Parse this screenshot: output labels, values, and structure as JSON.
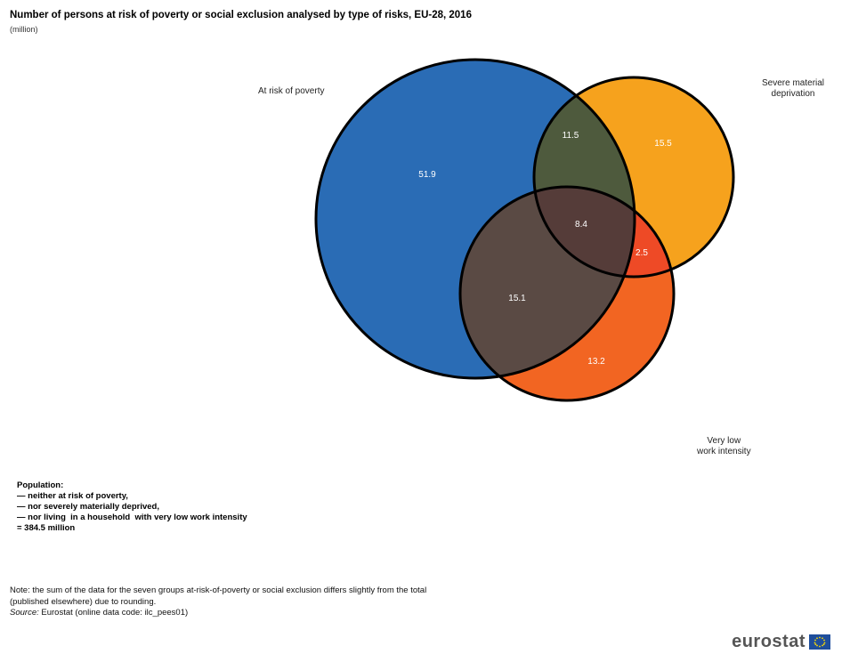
{
  "title": "Number of persons at risk of poverty or social exclusion analysed by type of risks, EU-28, 2016",
  "subtitle": "(million)",
  "sets": {
    "poverty": "At risk of poverty",
    "deprivation_line1": "Severe material",
    "deprivation_line2": "deprivation",
    "work_line1": "Very low",
    "work_line2": "work intensity"
  },
  "colors": {
    "poverty": "#2a6cb5",
    "deprivation": "#f6a21d",
    "work": "#f26522",
    "poverty_deprivation": "#4e5a3d",
    "poverty_work": "#5a4a44",
    "deprivation_work": "#ee4a26",
    "all_three": "#553c39"
  },
  "chart_data": {
    "type": "venn",
    "title": "Number of persons at risk of poverty or social exclusion analysed by type of risks, EU-28, 2016",
    "unit": "(million)",
    "sets": [
      "At risk of poverty",
      "Severe material deprivation",
      "Very low work intensity"
    ],
    "regions": {
      "poverty_only": "51.9",
      "deprivation_only": "15.5",
      "work_only": "13.2",
      "poverty_deprivation": "11.5",
      "poverty_work": "15.1",
      "deprivation_work": "2.5",
      "all_three": "8.4"
    }
  },
  "population": {
    "heading": "Population:",
    "line1": "— neither at risk of poverty,",
    "line2": "— nor severely materially deprived,",
    "line3": "— nor living  in a household  with very low work intensity",
    "line4": "= 384.5 million"
  },
  "note": {
    "line1": "Note: the sum of the data for the seven groups at-risk-of-poverty or social exclusion differs slightly from the total",
    "line2": "(published elsewhere) due to rounding.",
    "source_label": "Source:",
    "source_text": " Eurostat (online data code: ilc_pees01)"
  },
  "logo": {
    "text": "eurostat"
  }
}
